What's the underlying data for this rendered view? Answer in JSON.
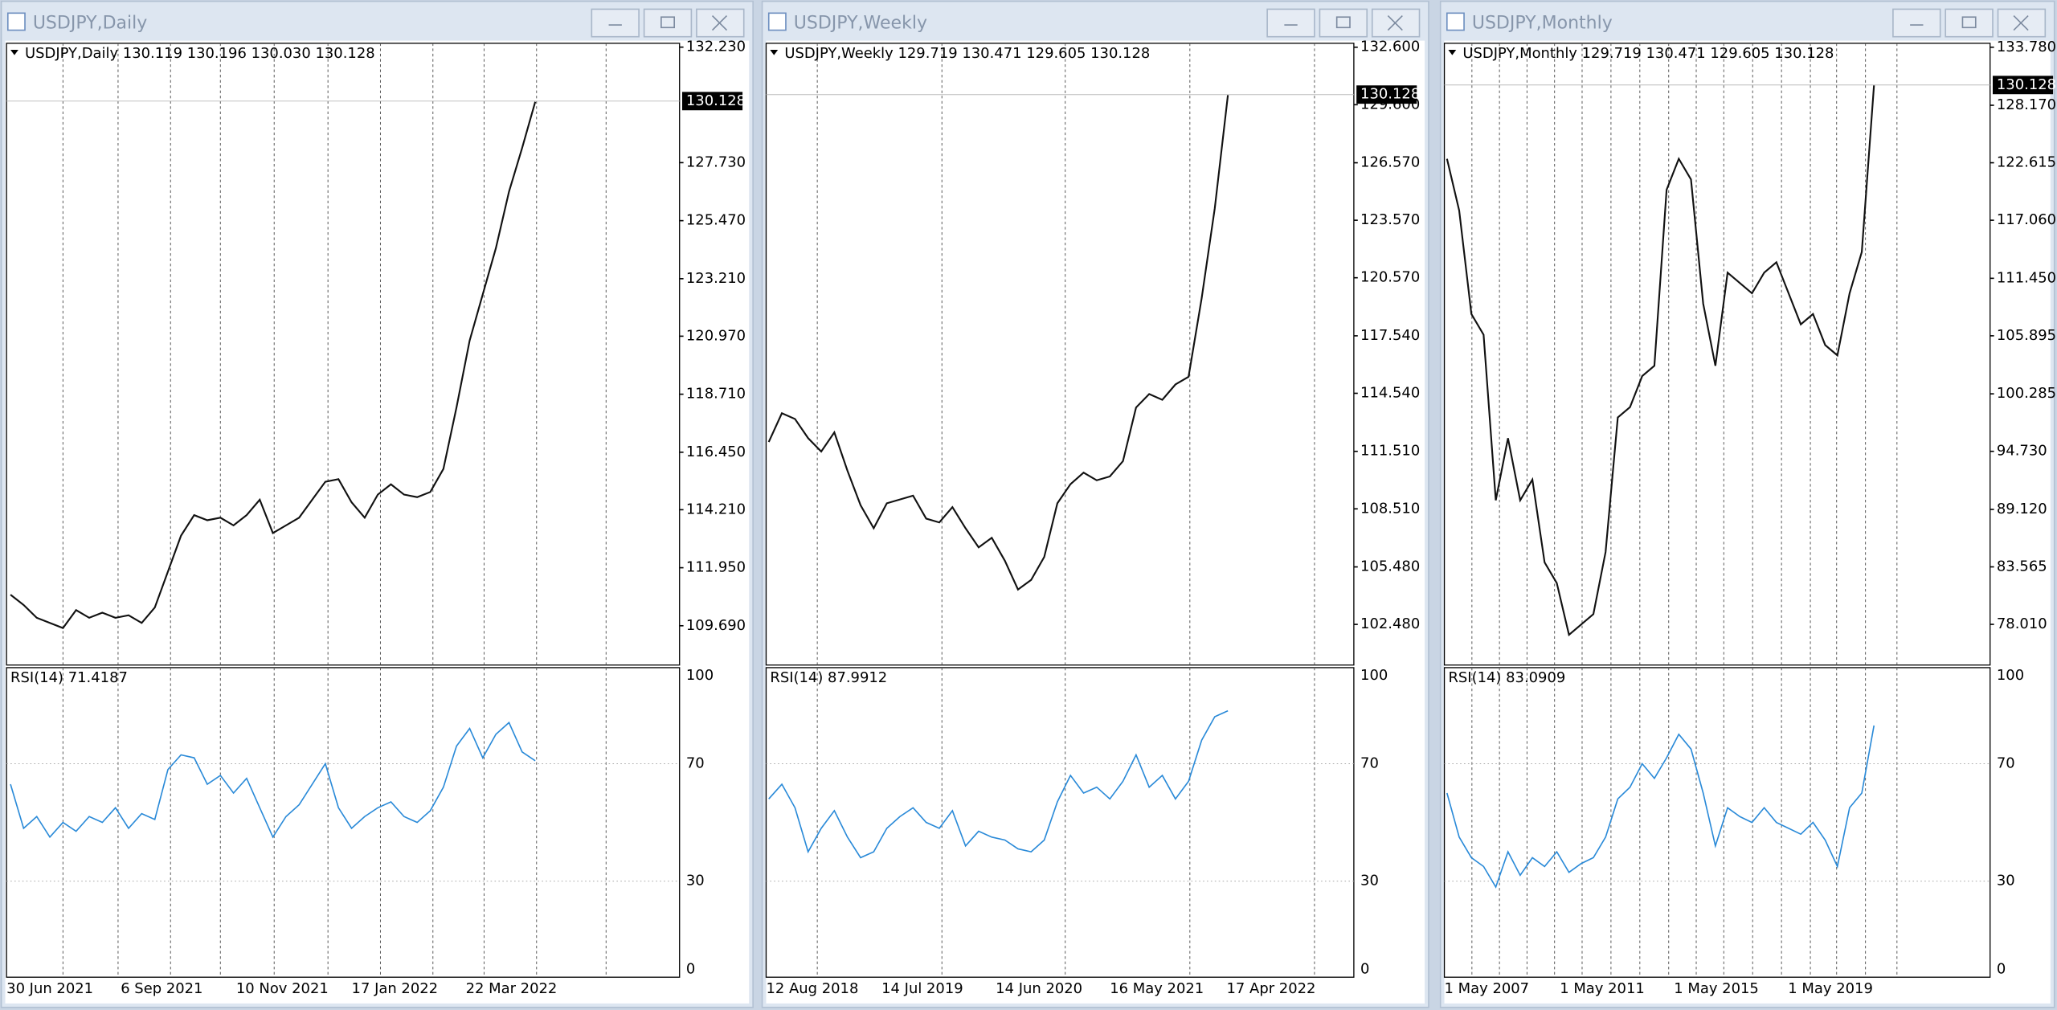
{
  "windows": [
    {
      "title": "USDJPY,Daily",
      "header": "USDJPY,Daily  130.119 130.196 130.030 130.128",
      "current_price": 130.128,
      "ylim": [
        108.16,
        132.38
      ],
      "yticks": [
        {
          "value": 132.23,
          "label": "132.230"
        },
        {
          "value": 127.73,
          "label": "127.730"
        },
        {
          "value": 125.47,
          "label": "125.470"
        },
        {
          "value": 123.21,
          "label": "123.210"
        },
        {
          "value": 120.97,
          "label": "120.970"
        },
        {
          "value": 118.71,
          "label": "118.710"
        },
        {
          "value": 116.45,
          "label": "116.450"
        },
        {
          "value": 114.21,
          "label": "114.210"
        },
        {
          "value": 111.95,
          "label": "111.950"
        },
        {
          "value": 109.69,
          "label": "109.690"
        }
      ],
      "prices": [
        110.9,
        110.5,
        110.0,
        109.8,
        109.6,
        110.3,
        110.0,
        110.2,
        110.0,
        110.1,
        109.8,
        110.4,
        111.8,
        113.2,
        114.0,
        113.8,
        113.9,
        113.6,
        114.0,
        114.6,
        113.3,
        113.6,
        113.9,
        114.6,
        115.3,
        115.4,
        114.5,
        113.9,
        114.8,
        115.2,
        114.8,
        114.7,
        114.9,
        115.8,
        118.2,
        120.8,
        122.6,
        124.4,
        126.6,
        128.3,
        130.1
      ],
      "rsi_label": "RSI(14) 71.4187",
      "rsi": [
        63,
        48,
        52,
        45,
        50,
        47,
        52,
        50,
        55,
        48,
        53,
        51,
        68,
        73,
        72,
        63,
        66,
        60,
        65,
        55,
        45,
        52,
        56,
        63,
        70,
        55,
        48,
        52,
        55,
        57,
        52,
        50,
        54,
        62,
        76,
        82,
        72,
        80,
        84,
        74,
        71
      ],
      "rsi_ylim": [
        -2.7,
        102.7
      ],
      "rsi_ticks": [
        100,
        70,
        30,
        0
      ],
      "dates": [
        "30 Jun 2021",
        "6 Sep 2021",
        "10 Nov 2021",
        "17 Jan 2022",
        "22 Mar 2022"
      ]
    },
    {
      "title": "USDJPY,Weekly",
      "header": "USDJPY,Weekly  129.719 130.471 129.605 130.128",
      "current_price": 130.128,
      "ylim": [
        100.36,
        132.805
      ],
      "yticks": [
        {
          "value": 132.6,
          "label": "132.600"
        },
        {
          "value": 129.6,
          "label": "129.600"
        },
        {
          "value": 126.57,
          "label": "126.570"
        },
        {
          "value": 123.57,
          "label": "123.570"
        },
        {
          "value": 120.57,
          "label": "120.570"
        },
        {
          "value": 117.54,
          "label": "117.540"
        },
        {
          "value": 114.54,
          "label": "114.540"
        },
        {
          "value": 111.51,
          "label": "111.510"
        },
        {
          "value": 108.51,
          "label": "108.510"
        },
        {
          "value": 105.48,
          "label": "105.480"
        },
        {
          "value": 102.48,
          "label": "102.480"
        }
      ],
      "prices": [
        112,
        113.5,
        113.2,
        112.2,
        111.5,
        112.5,
        110.5,
        108.7,
        107.5,
        108.8,
        109.0,
        109.2,
        108.0,
        107.8,
        108.6,
        107.5,
        106.5,
        107.0,
        105.8,
        104.3,
        104.8,
        106.0,
        108.8,
        109.8,
        110.4,
        110.0,
        110.2,
        111.0,
        113.8,
        114.5,
        114.2,
        115.0,
        115.4,
        119.5,
        124.2,
        130.1
      ],
      "rsi_label": "RSI(14) 87.9912",
      "rsi": [
        58,
        63,
        55,
        40,
        48,
        54,
        45,
        38,
        40,
        48,
        52,
        55,
        50,
        48,
        54,
        42,
        47,
        45,
        44,
        41,
        40,
        44,
        57,
        66,
        60,
        62,
        58,
        64,
        73,
        62,
        66,
        58,
        64,
        78,
        86,
        88
      ],
      "rsi_ylim": [
        -2.7,
        102.7
      ],
      "rsi_ticks": [
        100,
        70,
        30,
        0
      ],
      "dates": [
        "12 Aug 2018",
        "14 Jul 2019",
        "14 Jun 2020",
        "16 May 2021",
        "17 Apr 2022"
      ]
    },
    {
      "title": "USDJPY,Monthly",
      "header": "USDJPY,Monthly  129.719 130.471 129.605 130.128",
      "current_price": 130.128,
      "ylim": [
        74.08,
        134.16
      ],
      "yticks": [
        {
          "value": 133.78,
          "label": "133.780"
        },
        {
          "value": 128.17,
          "label": "128.170"
        },
        {
          "value": 122.615,
          "label": "122.615"
        },
        {
          "value": 117.06,
          "label": "117.060"
        },
        {
          "value": 111.45,
          "label": "111.450"
        },
        {
          "value": 105.895,
          "label": "105.895"
        },
        {
          "value": 100.285,
          "label": "100.285"
        },
        {
          "value": 94.73,
          "label": "94.730"
        },
        {
          "value": 89.12,
          "label": "89.120"
        },
        {
          "value": 83.565,
          "label": "83.565"
        },
        {
          "value": 78.01,
          "label": "78.010"
        }
      ],
      "prices": [
        123,
        118,
        108,
        106,
        90,
        96,
        90,
        92,
        84,
        82,
        77,
        78,
        79,
        85,
        98,
        99,
        102,
        103,
        120,
        123,
        121,
        109,
        103,
        112,
        111,
        110,
        112,
        113,
        110,
        107,
        108,
        105,
        104,
        110,
        114,
        130.1
      ],
      "rsi_label": "RSI(14) 83.0909",
      "rsi": [
        60,
        45,
        38,
        35,
        28,
        40,
        32,
        38,
        35,
        40,
        33,
        36,
        38,
        45,
        58,
        62,
        70,
        65,
        72,
        80,
        75,
        60,
        42,
        55,
        52,
        50,
        55,
        50,
        48,
        46,
        50,
        44,
        35,
        55,
        60,
        83
      ],
      "rsi_ylim": [
        -2.7,
        102.7
      ],
      "rsi_ticks": [
        100,
        70,
        30,
        0
      ],
      "dates": [
        "1 May 2007",
        "1 May 2011",
        "1 May 2015",
        "1 May 2019"
      ]
    }
  ]
}
